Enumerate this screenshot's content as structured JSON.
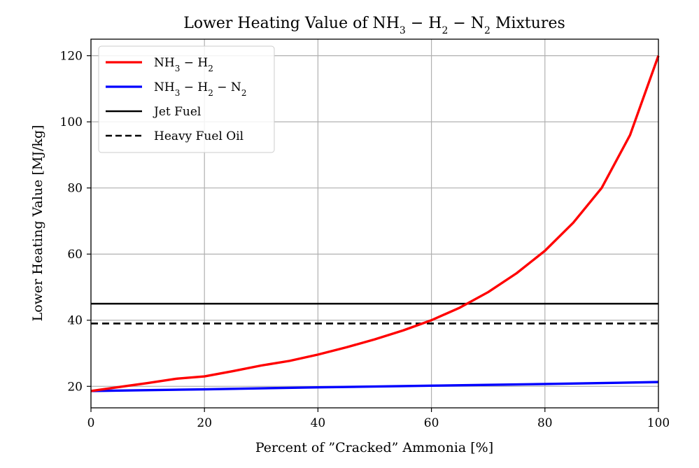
{
  "chart_data": {
    "type": "line",
    "title": "Lower Heating Value of NH3 − H2 − N2 Mixtures",
    "title_parts": {
      "prefix": "Lower Heating Value of NH",
      "s1": "3",
      "m1": " − H",
      "s2": "2",
      "m2": " − N",
      "s3": "2",
      "suffix": " Mixtures"
    },
    "xlabel": "Percent of ”Cracked” Ammonia [%]",
    "ylabel": "Lower Heating Value [MJ/kg]",
    "xlim": [
      0,
      100
    ],
    "ylim": [
      13.5,
      125
    ],
    "xticks": [
      0,
      20,
      40,
      60,
      80,
      100
    ],
    "yticks": [
      20,
      40,
      60,
      80,
      100,
      120
    ],
    "xtick_labels": [
      "0",
      "20",
      "40",
      "60",
      "80",
      "100"
    ],
    "ytick_labels": [
      "20",
      "40",
      "60",
      "80",
      "100",
      "120"
    ],
    "grid": true,
    "legend_position": "top-left",
    "series": [
      {
        "name": "NH3 − H2",
        "legend": {
          "a": "NH",
          "s1": "3",
          "b": " − H",
          "s2": "2"
        },
        "color": "#ff0000",
        "style": "solid",
        "x": [
          0,
          5,
          10,
          15,
          20,
          25,
          30,
          35,
          40,
          45,
          50,
          55,
          60,
          65,
          70,
          75,
          80,
          85,
          90,
          95,
          100
        ],
        "y": [
          18.6,
          19.8,
          21.0,
          22.3,
          23.0,
          24.6,
          26.3,
          27.7,
          29.6,
          31.8,
          34.2,
          36.9,
          40.0,
          43.8,
          48.5,
          54.2,
          61.0,
          69.5,
          80.0,
          96.0,
          120.0
        ]
      },
      {
        "name": "NH3 − H2 − N2",
        "legend": {
          "a": "NH",
          "s1": "3",
          "b": " − H",
          "s2": "2",
          "c": " − N",
          "s3": "2"
        },
        "color": "#0000ff",
        "style": "solid",
        "x": [
          0,
          20,
          40,
          60,
          80,
          100
        ],
        "y": [
          18.6,
          19.1,
          19.7,
          20.2,
          20.7,
          21.3
        ]
      },
      {
        "name": "Jet Fuel",
        "color": "#000000",
        "style": "solid",
        "x": [
          0,
          100
        ],
        "y": [
          45.0,
          45.0
        ]
      },
      {
        "name": "Heavy Fuel Oil",
        "color": "#000000",
        "style": "dashed",
        "x": [
          0,
          100
        ],
        "y": [
          39.0,
          39.0
        ]
      }
    ]
  }
}
